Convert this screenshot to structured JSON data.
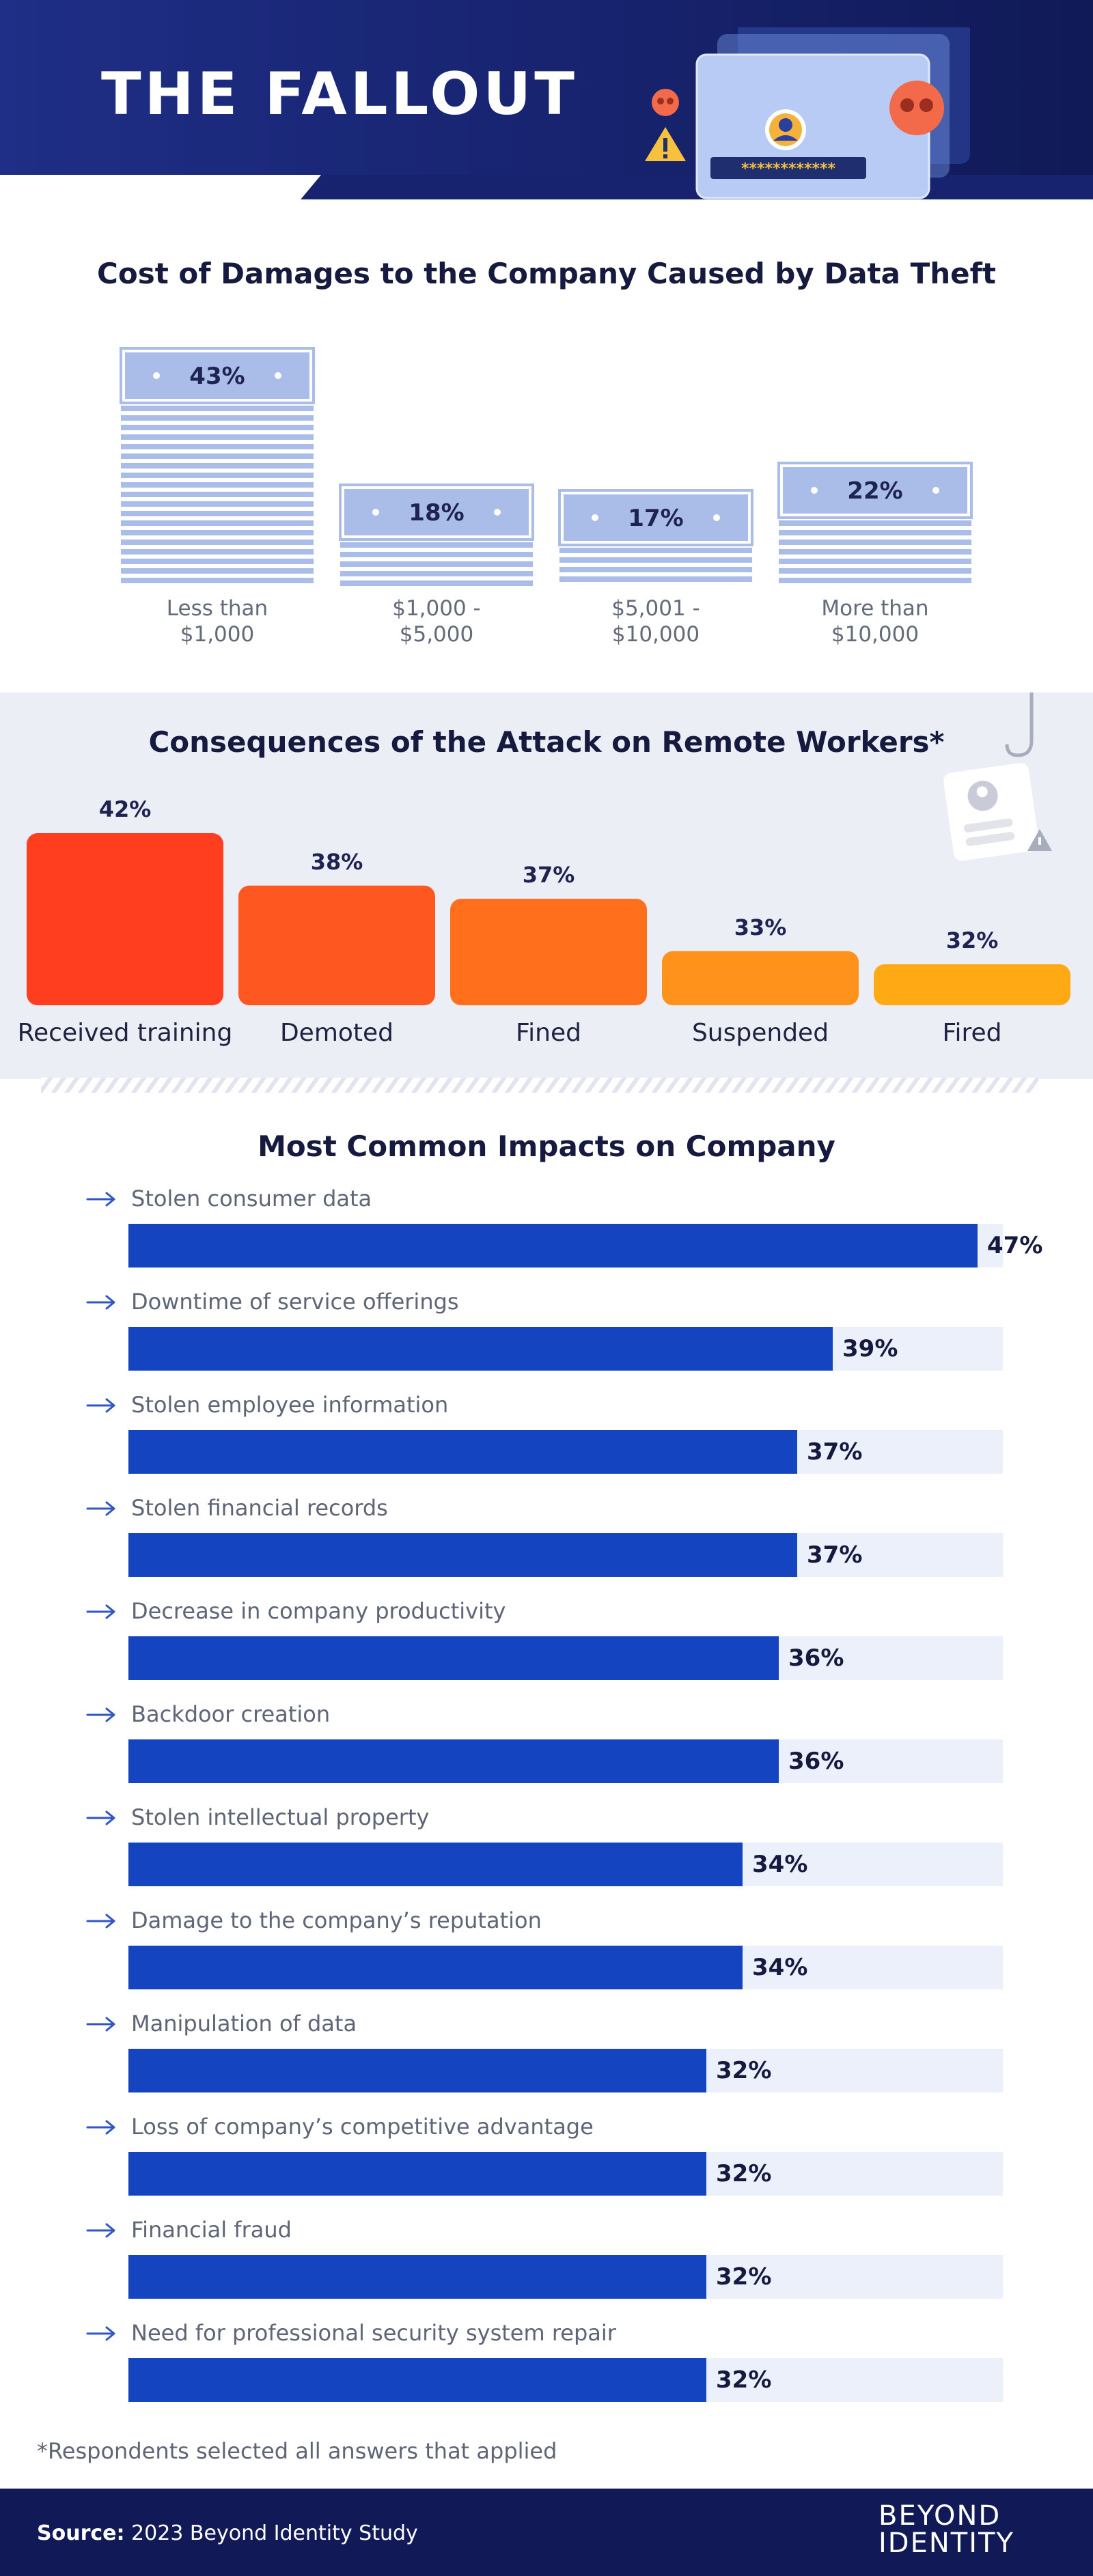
{
  "header": {
    "title": "THE FALLOUT",
    "illustration_password": "************"
  },
  "cost_section": {
    "title": "Cost of Damages to the Company Caused by Data Theft"
  },
  "consequences_section": {
    "title": "Consequences of the Attack on Remote Workers*"
  },
  "impacts_section": {
    "title": "Most Common Impacts on Company"
  },
  "chart_data": [
    {
      "type": "bar",
      "title": "Cost of Damages to the Company Caused by Data Theft",
      "categories": [
        "Less than\n$1,000",
        "$1,000 -\n$5,000",
        "$5,001 -\n$10,000",
        "More than\n$10,000"
      ],
      "values": [
        43,
        18,
        17,
        22
      ],
      "value_labels": [
        "43%",
        "18%",
        "17%",
        "22%"
      ],
      "unit": "%",
      "color": "#a9bde8"
    },
    {
      "type": "bar",
      "title": "Consequences of the Attack on Remote Workers*",
      "categories": [
        "Received training",
        "Demoted",
        "Fined",
        "Suspended",
        "Fired"
      ],
      "values": [
        42,
        38,
        37,
        33,
        32
      ],
      "value_labels": [
        "42%",
        "38%",
        "37%",
        "33%",
        "32%"
      ],
      "unit": "%",
      "colors": [
        "#ff3d1f",
        "#ff571f",
        "#ff6f1c",
        "#ff921a",
        "#ffaa14"
      ]
    },
    {
      "type": "bar",
      "orientation": "horizontal",
      "title": "Most Common Impacts on Company",
      "categories": [
        "Stolen consumer data",
        "Downtime of service offerings",
        "Stolen employee information",
        "Stolen financial records",
        "Decrease in company productivity",
        "Backdoor creation",
        "Stolen intellectual property",
        "Damage to the company’s reputation",
        "Manipulation of data",
        "Loss of company’s competitive advantage",
        "Financial fraud",
        "Need for professional security system repair"
      ],
      "values": [
        47,
        39,
        37,
        37,
        36,
        36,
        34,
        34,
        32,
        32,
        32,
        32
      ],
      "value_labels": [
        "47%",
        "39%",
        "37%",
        "37%",
        "36%",
        "36%",
        "34%",
        "34%",
        "32%",
        "32%",
        "32%",
        "32%"
      ],
      "unit": "%",
      "bar_color": "#1444bf",
      "track_color": "#ecf0fa"
    }
  ],
  "footnote": "*Respondents selected all answers that applied",
  "footer": {
    "source_label": "Source:",
    "source_text": "2023 Beyond Identity Study",
    "brand_line1": "BEYOND",
    "brand_line2": "IDENTITY"
  }
}
